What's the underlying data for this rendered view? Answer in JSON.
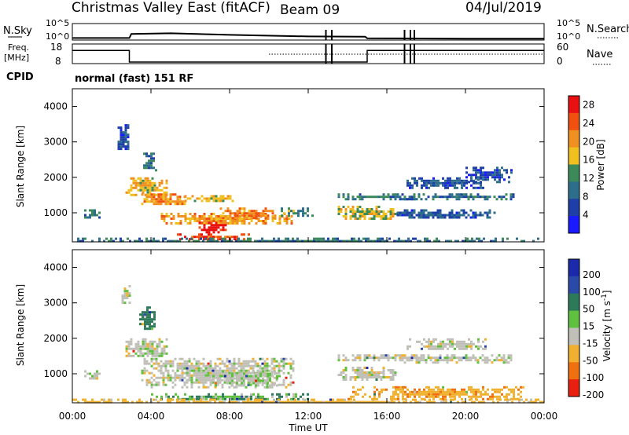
{
  "header": {
    "title": "Christmas Valley East (fitACF)",
    "beam": "Beam 09",
    "date": "04/Jul/2019"
  },
  "top_panels": {
    "nsky_label": "N.Sky",
    "nsky_ticks": [
      "10^5",
      "10^0"
    ],
    "nsearch_label": "N.Search",
    "nsearch_ticks": [
      "10^5",
      "10^0"
    ],
    "freq_label": "Freq.",
    "freq_unit": "[MHz]",
    "freq_ticks": [
      "18",
      "8"
    ],
    "nave_label": "Nave",
    "nave_ticks": [
      "60",
      "0"
    ],
    "cpid_label": "CPID",
    "cpid_text": "normal (fast) 151 RF"
  },
  "colors": {
    "power_scale": [
      "#1a1aff",
      "#1e3fa8",
      "#2d6e8c",
      "#3c8a5a",
      "#f0c020",
      "#f09020",
      "#f05010",
      "#e81010"
    ],
    "velocity_scale": [
      "#1a2aaa",
      "#2a4aaa",
      "#2d7a5a",
      "#60c040",
      "#c0c0b8",
      "#f0b030",
      "#f07010",
      "#e82010"
    ]
  },
  "chart_data": [
    {
      "type": "heatmap",
      "name": "power",
      "ylabel": "Slant Range [km]",
      "x_ticks": [
        "00:00",
        "04:00",
        "08:00",
        "12:00",
        "16:00",
        "20:00",
        "00:00"
      ],
      "y_ticks": [
        "1000",
        "2000",
        "3000",
        "4000"
      ],
      "xlim_hours": [
        0,
        24
      ],
      "ylim_km": [
        180,
        4500
      ],
      "colorbar_label": "Power [dB]",
      "colorbar_ticks": [
        "4",
        "8",
        "12",
        "16",
        "20",
        "24",
        "28"
      ],
      "colorbar_range": [
        0,
        30
      ],
      "regions": [
        {
          "t0": 0.6,
          "t1": 1.4,
          "r0": 850,
          "r1": 1100,
          "level": 10
        },
        {
          "t0": 2.3,
          "t1": 2.9,
          "r0": 2800,
          "r1": 3500,
          "level": 6
        },
        {
          "t0": 2.7,
          "t1": 4.8,
          "r0": 1500,
          "r1": 2000,
          "level": 18
        },
        {
          "t0": 3.5,
          "t1": 5.7,
          "r0": 1250,
          "r1": 1550,
          "level": 20
        },
        {
          "t0": 3.6,
          "t1": 4.3,
          "r0": 2200,
          "r1": 2700,
          "level": 10
        },
        {
          "t0": 5.7,
          "t1": 8.2,
          "r0": 1350,
          "r1": 1500,
          "level": 18
        },
        {
          "t0": 4.5,
          "t1": 11.2,
          "r0": 700,
          "r1": 1000,
          "level": 20
        },
        {
          "t0": 6.3,
          "t1": 7.8,
          "r0": 450,
          "r1": 750,
          "level": 28
        },
        {
          "t0": 7.5,
          "t1": 10.3,
          "r0": 850,
          "r1": 1150,
          "level": 22
        },
        {
          "t0": 5.2,
          "t1": 9.0,
          "r0": 260,
          "r1": 420,
          "level": 26
        },
        {
          "t0": 0.0,
          "t1": 24.0,
          "r0": 180,
          "r1": 300,
          "level": 10
        },
        {
          "t0": 10.6,
          "t1": 12.2,
          "r0": 950,
          "r1": 1150,
          "level": 12
        },
        {
          "t0": 13.5,
          "t1": 16.5,
          "r0": 850,
          "r1": 1200,
          "level": 16
        },
        {
          "t0": 13.5,
          "t1": 17.5,
          "r0": 1400,
          "r1": 1550,
          "level": 11
        },
        {
          "t0": 16.5,
          "t1": 22.5,
          "r0": 1400,
          "r1": 1550,
          "level": 9
        },
        {
          "t0": 16.5,
          "t1": 21.5,
          "r0": 850,
          "r1": 1100,
          "level": 7
        },
        {
          "t0": 17.0,
          "t1": 21.0,
          "r0": 1700,
          "r1": 2000,
          "level": 7
        },
        {
          "t0": 20.0,
          "t1": 22.3,
          "r0": 1900,
          "r1": 2300,
          "level": 6
        }
      ]
    },
    {
      "type": "heatmap",
      "name": "velocity",
      "ylabel": "Slant Range [km]",
      "xlabel": "Time UT",
      "x_ticks": [
        "00:00",
        "04:00",
        "08:00",
        "12:00",
        "16:00",
        "20:00",
        "00:00"
      ],
      "y_ticks": [
        "1000",
        "2000",
        "3000",
        "4000"
      ],
      "xlim_hours": [
        0,
        24
      ],
      "ylim_km": [
        180,
        4500
      ],
      "colorbar_label": "Velocity [m s^-1]",
      "colorbar_ticks": [
        "200",
        "100",
        "50",
        "15",
        "-15",
        "-50",
        "-100",
        "-200"
      ],
      "regions": [
        {
          "t0": 0.6,
          "t1": 1.4,
          "r0": 850,
          "r1": 1100,
          "v": 0
        },
        {
          "t0": 2.5,
          "t1": 2.9,
          "r0": 3000,
          "r1": 3500,
          "v": 0
        },
        {
          "t0": 3.4,
          "t1": 4.2,
          "r0": 2300,
          "r1": 2900,
          "v": 60
        },
        {
          "t0": 2.7,
          "t1": 4.8,
          "r0": 1500,
          "r1": 2000,
          "v": 0
        },
        {
          "t0": 3.5,
          "t1": 11.2,
          "r0": 650,
          "r1": 1450,
          "v": 0
        },
        {
          "t0": 7.0,
          "t1": 10.5,
          "r0": 700,
          "r1": 1100,
          "v": 10
        },
        {
          "t0": 4.0,
          "t1": 12.0,
          "r0": 260,
          "r1": 450,
          "v": 30
        },
        {
          "t0": 0.0,
          "t1": 24.0,
          "r0": 180,
          "r1": 300,
          "v": -30
        },
        {
          "t0": 13.5,
          "t1": 16.5,
          "r0": 850,
          "r1": 1200,
          "v": 0
        },
        {
          "t0": 13.5,
          "t1": 17.5,
          "r0": 1400,
          "r1": 1550,
          "v": 0
        },
        {
          "t0": 16.5,
          "t1": 22.5,
          "r0": 1350,
          "r1": 1550,
          "v": 0
        },
        {
          "t0": 17.0,
          "t1": 21.0,
          "r0": 1700,
          "r1": 2000,
          "v": 0
        },
        {
          "t0": 14.0,
          "t1": 23.0,
          "r0": 300,
          "r1": 650,
          "v": -40
        }
      ]
    },
    {
      "type": "line",
      "name": "nsky",
      "x_hours": [
        0,
        2.9,
        3.0,
        5.0,
        8.0,
        12.0,
        14.9,
        15.0,
        20.0,
        24.0
      ],
      "y_log": [
        0.4,
        0.4,
        1.7,
        1.9,
        1.4,
        0.9,
        0.8,
        0.3,
        0.2,
        0.2
      ]
    },
    {
      "type": "line",
      "name": "frequency",
      "x_hours": [
        0,
        2.9,
        2.9,
        15.0,
        15.0,
        24.0
      ],
      "y_mhz": [
        15.5,
        15.5,
        9.6,
        9.6,
        15.5,
        15.5
      ]
    },
    {
      "type": "line",
      "name": "nave",
      "x_hours": [
        10.0,
        24.0
      ],
      "y_count": [
        30,
        30
      ]
    }
  ]
}
